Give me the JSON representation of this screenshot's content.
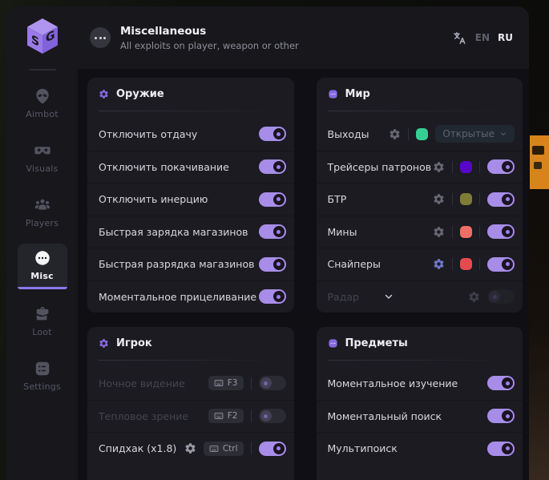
{
  "app": {
    "logo": {
      "letter_left": "S",
      "letter_right": "G"
    },
    "header": {
      "title": "Miscellaneous",
      "subtitle": "All exploits on player, weapon or other",
      "languages": [
        {
          "code": "EN",
          "active": false
        },
        {
          "code": "RU",
          "active": true
        }
      ]
    }
  },
  "sidebar": {
    "items": [
      {
        "id": "aimbot",
        "label": "Aimbot",
        "icon": "alien",
        "active": false
      },
      {
        "id": "visuals",
        "label": "Visuals",
        "icon": "goggles",
        "active": false
      },
      {
        "id": "players",
        "label": "Players",
        "icon": "people",
        "active": false
      },
      {
        "id": "misc",
        "label": "Misc",
        "icon": "ellipsis",
        "active": true
      },
      {
        "id": "loot",
        "label": "Loot",
        "icon": "briefcase",
        "active": false
      },
      {
        "id": "settings",
        "label": "Settings",
        "icon": "settings",
        "active": false
      }
    ]
  },
  "sections": [
    {
      "id": "weapon",
      "title": "Оружие",
      "icon": "gear",
      "column": "left",
      "rows": [
        {
          "label": "Отключить отдачу",
          "controls": [
            {
              "type": "toggle",
              "on": true
            }
          ]
        },
        {
          "label": "Отключить покачивание",
          "controls": [
            {
              "type": "toggle",
              "on": true
            }
          ]
        },
        {
          "label": "Отключить инерцию",
          "controls": [
            {
              "type": "toggle",
              "on": true
            }
          ]
        },
        {
          "label": "Быстрая зарядка магазинов",
          "controls": [
            {
              "type": "toggle",
              "on": true
            }
          ]
        },
        {
          "label": "Быстрая разрядка магазинов",
          "controls": [
            {
              "type": "toggle",
              "on": true
            }
          ]
        },
        {
          "label": "Моментальное прицеливание",
          "controls": [
            {
              "type": "toggle",
              "on": true
            }
          ]
        }
      ]
    },
    {
      "id": "player",
      "title": "Игрок",
      "icon": "gear",
      "column": "left",
      "rows": [
        {
          "label": "Ночное видение",
          "dim": true,
          "controls": [
            {
              "type": "hotkey",
              "key": "F3"
            },
            {
              "type": "divider"
            },
            {
              "type": "toggle",
              "on": false
            }
          ]
        },
        {
          "label": "Тепловое зрение",
          "dim": true,
          "controls": [
            {
              "type": "hotkey",
              "key": "F2"
            },
            {
              "type": "divider"
            },
            {
              "type": "toggle",
              "on": false
            }
          ]
        },
        {
          "label": "Спидхак (x1.8)",
          "controls": [
            {
              "type": "gear",
              "color": "#9b9ba6"
            },
            {
              "type": "hotkey",
              "key": "Ctrl"
            },
            {
              "type": "divider"
            },
            {
              "type": "toggle",
              "on": true
            }
          ]
        }
      ]
    },
    {
      "id": "world",
      "title": "Мир",
      "icon": "dots",
      "column": "right",
      "rows": [
        {
          "label": "Выходы",
          "controls": [
            {
              "type": "gear"
            },
            {
              "type": "divider"
            },
            {
              "type": "swatch",
              "color": "#35cf94"
            },
            {
              "type": "select",
              "value": "Открытые"
            }
          ]
        },
        {
          "label": "Трейсеры патронов",
          "controls": [
            {
              "type": "gear"
            },
            {
              "type": "divider"
            },
            {
              "type": "swatch",
              "color": "#5807c8"
            },
            {
              "type": "divider"
            },
            {
              "type": "toggle",
              "on": true
            }
          ]
        },
        {
          "label": "БТР",
          "controls": [
            {
              "type": "gear"
            },
            {
              "type": "divider"
            },
            {
              "type": "swatch",
              "color": "#7e7c35"
            },
            {
              "type": "divider"
            },
            {
              "type": "toggle",
              "on": true
            }
          ]
        },
        {
          "label": "Мины",
          "controls": [
            {
              "type": "gear"
            },
            {
              "type": "divider"
            },
            {
              "type": "swatch",
              "color": "#ef6f66"
            },
            {
              "type": "divider"
            },
            {
              "type": "toggle",
              "on": true
            }
          ]
        },
        {
          "label": "Снайперы",
          "controls": [
            {
              "type": "gear",
              "color": "#6d79c8"
            },
            {
              "type": "divider"
            },
            {
              "type": "swatch",
              "color": "#e8494f"
            },
            {
              "type": "divider"
            },
            {
              "type": "toggle",
              "on": true
            }
          ]
        },
        {
          "label": "Радар",
          "dim": true,
          "expandable": true,
          "controls": [
            {
              "type": "gear",
              "dim": true
            },
            {
              "type": "toggle",
              "on": false,
              "dim": true
            }
          ]
        }
      ]
    },
    {
      "id": "items",
      "title": "Предметы",
      "icon": "dots",
      "column": "right",
      "rows": [
        {
          "label": "Моментальное изучение",
          "controls": [
            {
              "type": "toggle",
              "on": true
            }
          ]
        },
        {
          "label": "Моментальный поиск",
          "controls": [
            {
              "type": "toggle",
              "on": true
            }
          ]
        },
        {
          "label": "Мультипоиск",
          "controls": [
            {
              "type": "toggle",
              "on": true
            }
          ]
        }
      ]
    }
  ],
  "colors": {
    "accent": "#a78de8",
    "panel": "#17171c",
    "card": "#1b1b21",
    "content_bg": "#0f0f14",
    "billboard_orange": "#d9831d"
  }
}
